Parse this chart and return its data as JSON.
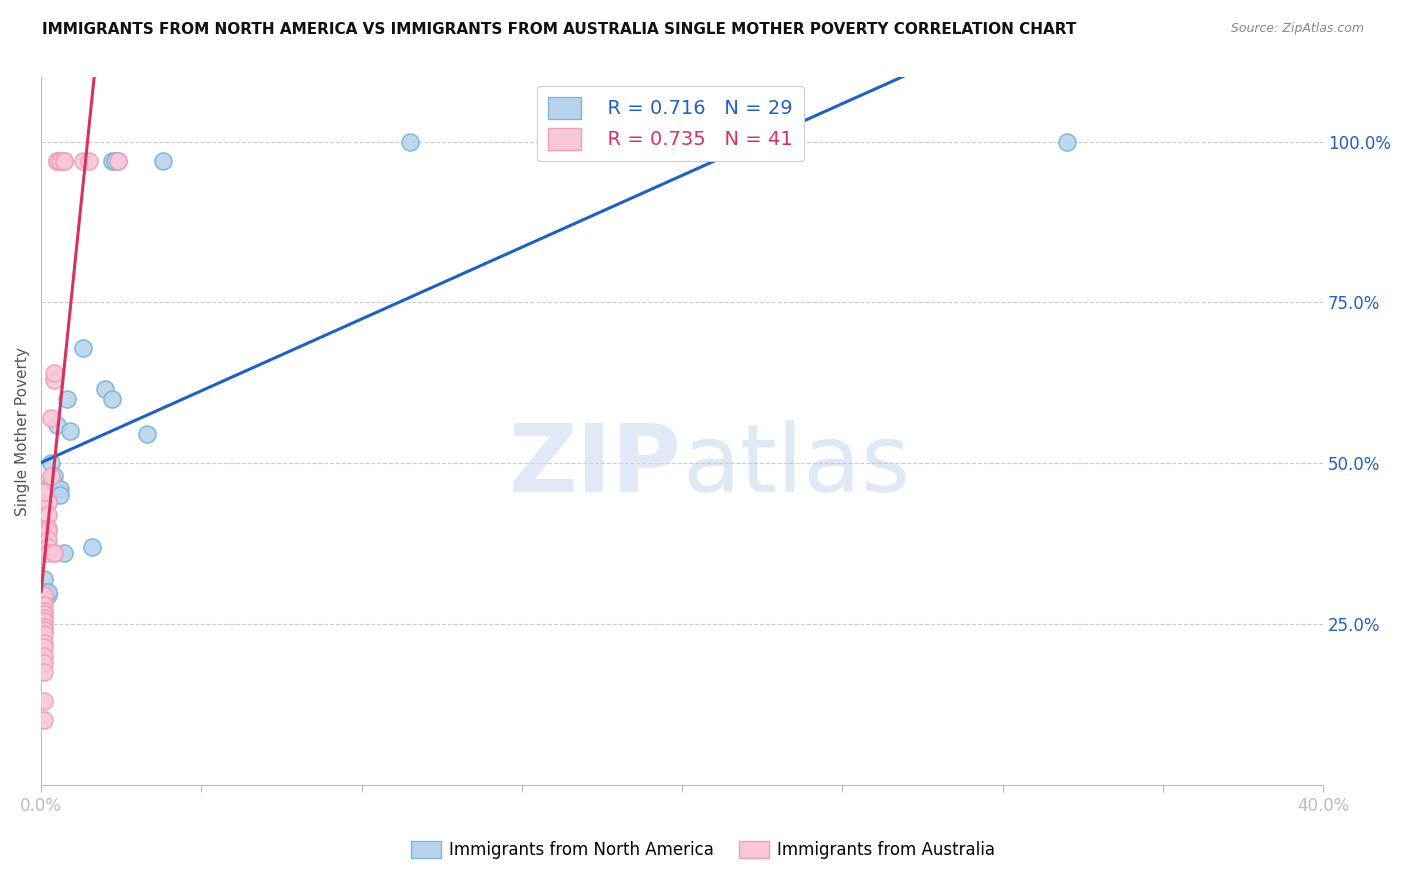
{
  "title": "IMMIGRANTS FROM NORTH AMERICA VS IMMIGRANTS FROM AUSTRALIA SINGLE MOTHER POVERTY CORRELATION CHART",
  "source": "Source: ZipAtlas.com",
  "ylabel": "Single Mother Poverty",
  "right_yticks": [
    "25.0%",
    "50.0%",
    "75.0%",
    "100.0%"
  ],
  "right_ytick_vals": [
    0.25,
    0.5,
    0.75,
    1.0
  ],
  "xlim": [
    0.0,
    0.4
  ],
  "ylim": [
    0.0,
    1.1
  ],
  "watermark_zip": "ZIP",
  "watermark_atlas": "atlas",
  "legend_blue_r": "0.716",
  "legend_blue_n": "29",
  "legend_pink_r": "0.735",
  "legend_pink_n": "41",
  "blue_scatter": [
    [
      0.001,
      0.285
    ],
    [
      0.001,
      0.32
    ],
    [
      0.001,
      0.295
    ],
    [
      0.001,
      0.3
    ],
    [
      0.001,
      0.295
    ],
    [
      0.002,
      0.295
    ],
    [
      0.002,
      0.3
    ],
    [
      0.002,
      0.44
    ],
    [
      0.003,
      0.47
    ],
    [
      0.003,
      0.5
    ],
    [
      0.004,
      0.48
    ],
    [
      0.004,
      0.47
    ],
    [
      0.005,
      0.56
    ],
    [
      0.006,
      0.46
    ],
    [
      0.006,
      0.45
    ],
    [
      0.007,
      0.36
    ],
    [
      0.008,
      0.6
    ],
    [
      0.009,
      0.55
    ],
    [
      0.013,
      0.68
    ],
    [
      0.016,
      0.37
    ],
    [
      0.02,
      0.615
    ],
    [
      0.022,
      0.6
    ],
    [
      0.022,
      0.97
    ],
    [
      0.023,
      0.97
    ],
    [
      0.024,
      0.97
    ],
    [
      0.033,
      0.545
    ],
    [
      0.038,
      0.97
    ],
    [
      0.115,
      1.0
    ],
    [
      0.32,
      1.0
    ]
  ],
  "pink_scatter": [
    [
      0.001,
      0.285
    ],
    [
      0.001,
      0.295
    ],
    [
      0.001,
      0.28
    ],
    [
      0.001,
      0.27
    ],
    [
      0.001,
      0.265
    ],
    [
      0.001,
      0.26
    ],
    [
      0.001,
      0.255
    ],
    [
      0.001,
      0.245
    ],
    [
      0.001,
      0.24
    ],
    [
      0.001,
      0.235
    ],
    [
      0.001,
      0.22
    ],
    [
      0.001,
      0.215
    ],
    [
      0.001,
      0.2
    ],
    [
      0.001,
      0.19
    ],
    [
      0.001,
      0.175
    ],
    [
      0.001,
      0.13
    ],
    [
      0.002,
      0.44
    ],
    [
      0.002,
      0.44
    ],
    [
      0.002,
      0.42
    ],
    [
      0.002,
      0.4
    ],
    [
      0.002,
      0.395
    ],
    [
      0.002,
      0.38
    ],
    [
      0.002,
      0.37
    ],
    [
      0.002,
      0.36
    ],
    [
      0.003,
      0.57
    ],
    [
      0.003,
      0.48
    ],
    [
      0.004,
      0.63
    ],
    [
      0.004,
      0.36
    ],
    [
      0.004,
      0.36
    ],
    [
      0.004,
      0.64
    ],
    [
      0.005,
      0.97
    ],
    [
      0.005,
      0.97
    ],
    [
      0.006,
      0.97
    ],
    [
      0.006,
      0.97
    ],
    [
      0.007,
      0.97
    ],
    [
      0.007,
      0.97
    ],
    [
      0.013,
      0.97
    ],
    [
      0.015,
      0.97
    ],
    [
      0.024,
      0.97
    ],
    [
      0.001,
      0.1
    ],
    [
      0.001,
      0.455
    ]
  ]
}
